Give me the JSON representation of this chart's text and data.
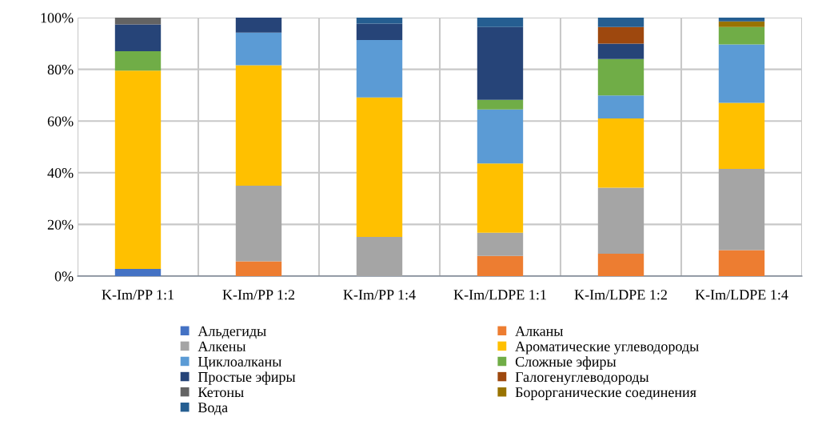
{
  "chart_data": {
    "type": "bar",
    "stacked": true,
    "categories": [
      "K-Im/PP 1:1",
      "K-Im/PP 1:2",
      "K-Im/PP 1:4",
      "K-Im/LDPE 1:1",
      "K-Im/LDPE 1:2",
      "K-Im/LDPE 1:4"
    ],
    "series": [
      {
        "name": "Альдегиды",
        "color": "#4472c4",
        "values": [
          2.8,
          null,
          null,
          null,
          null,
          null
        ]
      },
      {
        "name": "Алканы",
        "color": "#ed7d31",
        "values": [
          null,
          5.7,
          null,
          7.8,
          8.7,
          10.1
        ]
      },
      {
        "name": "Алкены",
        "color": "#a5a5a5",
        "values": [
          null,
          29.3,
          15.2,
          9.0,
          25.5,
          31.4
        ]
      },
      {
        "name": "Ароматические углеводороды",
        "color": "#ffc000",
        "values": [
          76.7,
          46.6,
          53.9,
          26.8,
          26.8,
          25.5
        ]
      },
      {
        "name": "Циклоалканы",
        "color": "#5b9bd5",
        "values": [
          null,
          12.6,
          22.2,
          20.9,
          8.9,
          22.6
        ]
      },
      {
        "name": "Сложные эфиры",
        "color": "#70ad47",
        "values": [
          7.5,
          null,
          null,
          3.7,
          14.1,
          6.8
        ]
      },
      {
        "name": "Простые эфиры",
        "color": "#264478",
        "values": [
          10.4,
          5.8,
          6.4,
          28.2,
          5.9,
          null
        ]
      },
      {
        "name": "Галогенуглеводороды",
        "color": "#9e480e",
        "values": [
          null,
          null,
          null,
          null,
          6.5,
          null
        ]
      },
      {
        "name": "Кетоны",
        "color": "#636363",
        "values": [
          2.6,
          null,
          null,
          null,
          null,
          null
        ]
      },
      {
        "name": "Борорганические соединения",
        "color": "#997300",
        "values": [
          null,
          null,
          null,
          null,
          null,
          2.1
        ]
      },
      {
        "name": "Вода",
        "color": "#255e91",
        "values": [
          null,
          null,
          2.3,
          3.6,
          3.6,
          1.5
        ]
      }
    ],
    "ylim": [
      0,
      100
    ],
    "yticks": [
      {
        "value": 0,
        "label": "0%"
      },
      {
        "value": 20,
        "label": "20%"
      },
      {
        "value": 40,
        "label": "40%"
      },
      {
        "value": 60,
        "label": "60%"
      },
      {
        "value": 80,
        "label": "80%"
      },
      {
        "value": 100,
        "label": "100%"
      }
    ],
    "grid": true,
    "legend": "bottom"
  }
}
